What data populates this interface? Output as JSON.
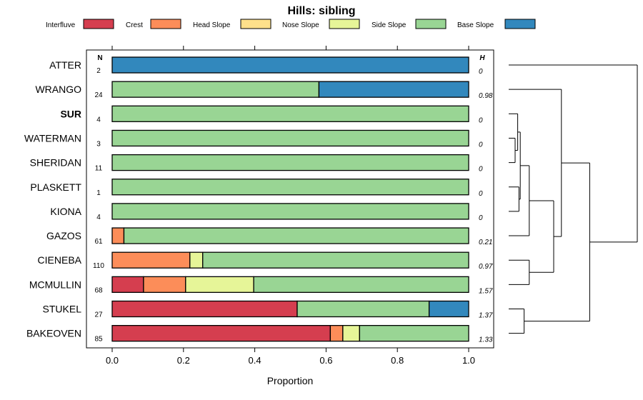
{
  "chart_data": {
    "type": "bar",
    "subtype": "stacked-horizontal-proportion",
    "title": "Hills: sibling",
    "xlabel": "Proportion",
    "ylabel": "",
    "xlim": [
      0,
      1
    ],
    "x_ticks": [
      "0.0",
      "0.2",
      "0.4",
      "0.6",
      "0.8",
      "1.0"
    ],
    "x_tick_values": [
      0,
      0.2,
      0.4,
      0.6,
      0.8,
      1.0
    ],
    "n_header": "N",
    "h_header": "H",
    "legend_position": "top",
    "legend": [
      {
        "name": "Interfluve",
        "color": "#d53e4f"
      },
      {
        "name": "Crest",
        "color": "#fc8d59"
      },
      {
        "name": "Head Slope",
        "color": "#fee08b"
      },
      {
        "name": "Nose Slope",
        "color": "#e6f598"
      },
      {
        "name": "Side Slope",
        "color": "#99d594"
      },
      {
        "name": "Base Slope",
        "color": "#3288bd"
      }
    ],
    "rows": [
      {
        "name": "ATTER",
        "bold": false,
        "n": "2",
        "h": "0",
        "values": [
          0,
          0,
          0,
          0,
          0,
          1.0
        ]
      },
      {
        "name": "WRANGO",
        "bold": false,
        "n": "24",
        "h": "0.98",
        "values": [
          0,
          0,
          0,
          0,
          0.58,
          0.42
        ]
      },
      {
        "name": "SUR",
        "bold": true,
        "n": "4",
        "h": "0",
        "values": [
          0,
          0,
          0,
          0,
          1.0,
          0
        ]
      },
      {
        "name": "WATERMAN",
        "bold": false,
        "n": "3",
        "h": "0",
        "values": [
          0,
          0,
          0,
          0,
          1.0,
          0
        ]
      },
      {
        "name": "SHERIDAN",
        "bold": false,
        "n": "11",
        "h": "0",
        "values": [
          0,
          0,
          0,
          0,
          1.0,
          0
        ]
      },
      {
        "name": "PLASKETT",
        "bold": false,
        "n": "1",
        "h": "0",
        "values": [
          0,
          0,
          0,
          0,
          1.0,
          0
        ]
      },
      {
        "name": "KIONA",
        "bold": false,
        "n": "4",
        "h": "0",
        "values": [
          0,
          0,
          0,
          0,
          1.0,
          0
        ]
      },
      {
        "name": "GAZOS",
        "bold": false,
        "n": "61",
        "h": "0.21",
        "values": [
          0,
          0.033,
          0,
          0,
          0.967,
          0
        ]
      },
      {
        "name": "CIENEBA",
        "bold": false,
        "n": "110",
        "h": "0.97",
        "values": [
          0,
          0.218,
          0,
          0.036,
          0.746,
          0
        ]
      },
      {
        "name": "MCMULLIN",
        "bold": false,
        "n": "68",
        "h": "1.57",
        "values": [
          0.088,
          0.118,
          0,
          0.191,
          0.603,
          0
        ]
      },
      {
        "name": "STUKEL",
        "bold": false,
        "n": "27",
        "h": "1.37",
        "values": [
          0.519,
          0,
          0,
          0,
          0.37,
          0.111
        ]
      },
      {
        "name": "BAKEOVEN",
        "bold": false,
        "n": "85",
        "h": "1.33",
        "values": [
          0.612,
          0.035,
          0,
          0.047,
          0.306,
          0
        ]
      }
    ],
    "dendrogram": {
      "note": "clustering of rows by proportion profile; heights relative",
      "merges": [
        {
          "a": "WATERMAN",
          "b": "SHERIDAN",
          "height": 0.05
        },
        {
          "a": "SUR",
          "b": "WATERMAN+SHERIDAN",
          "height": 0.07
        },
        {
          "a": "KIONA",
          "b": "PLASKETT",
          "height": 0.08
        },
        {
          "a": "SUR+WATERMAN+SHERIDAN",
          "b": "KIONA+PLASKETT",
          "height": 0.09
        },
        {
          "a": "SUR..PLASKETT",
          "b": "GAZOS",
          "height": 0.16
        },
        {
          "a": "CIENEBA",
          "b": "MCMULLIN",
          "height": 0.16
        },
        {
          "a": "SUR..GAZOS",
          "b": "CIENEBA+MCMULLIN",
          "height": 0.35
        },
        {
          "a": "STUKEL",
          "b": "BAKEOVEN",
          "height": 0.12
        },
        {
          "a": "WRANGO",
          "b": "SUR..MCMULLIN",
          "height": 0.41
        },
        {
          "a": "WRANGO..MCMULLIN",
          "b": "STUKEL+BAKEOVEN",
          "height": 0.63
        },
        {
          "a": "ATTER",
          "b": "WRANGO..BAKEOVEN",
          "height": 1.0
        }
      ]
    }
  }
}
